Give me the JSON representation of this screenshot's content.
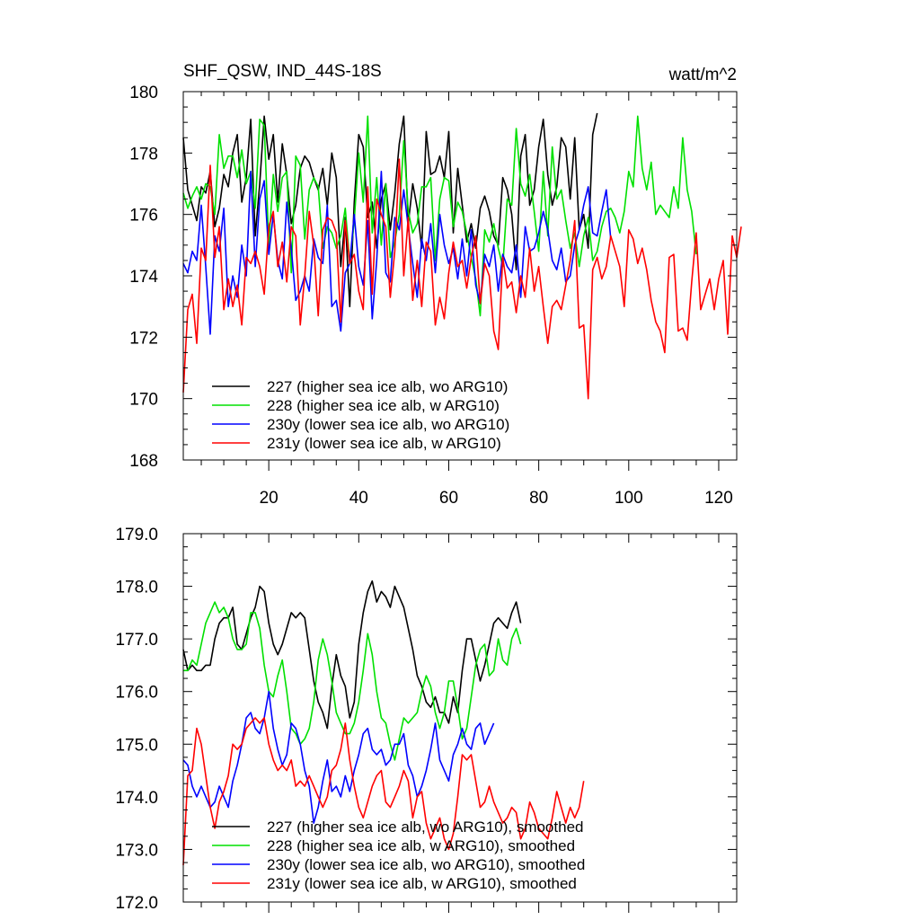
{
  "chart_data": [
    {
      "type": "line",
      "title": "SHF_QSW, IND_44S-18S",
      "units": "watt/m^2",
      "xlabel": "",
      "ylabel": "",
      "xlim": [
        1,
        124
      ],
      "ylim": [
        168,
        180
      ],
      "x_ticks": [
        20,
        40,
        60,
        80,
        100,
        120
      ],
      "y_ticks": [
        168,
        170,
        172,
        174,
        176,
        178,
        180
      ],
      "y_tick_labels": [
        "168",
        "170",
        "172",
        "174",
        "176",
        "178",
        "180"
      ],
      "legend_position": "bottom-left",
      "series": [
        {
          "name": "227 (higher sea ice alb, wo ARG10)",
          "color": "#000000",
          "values": [
            178.5,
            176.8,
            176.3,
            175.8,
            176.9,
            176.7,
            177.4,
            175.6,
            176.2,
            177.3,
            176.9,
            178.0,
            178.6,
            176.4,
            177.2,
            179.1,
            175.3,
            177.0,
            179.2,
            177.8,
            178.6,
            176.4,
            178.3,
            177.3,
            175.7,
            176.3,
            177.5,
            177.9,
            177.7,
            177.2,
            176.8,
            177.5,
            176.3,
            178.0,
            177.2,
            174.3,
            175.9,
            173.0,
            176.4,
            178.6,
            178.2,
            175.9,
            176.4,
            174.9,
            176.5,
            177.0,
            175.5,
            176.7,
            178.3,
            179.2,
            175.7,
            177.0,
            176.2,
            174.9,
            178.7,
            177.3,
            177.4,
            177.9,
            177.2,
            178.7,
            175.4,
            177.5,
            176.3,
            175.1,
            175.7,
            174.9,
            176.2,
            176.6,
            176.1,
            175.3,
            175.0,
            177.2,
            176.8,
            176.0,
            174.2,
            177.9,
            178.6,
            176.3,
            176.8,
            178.2,
            179.1,
            177.3,
            176.3,
            176.9,
            178.5,
            178.2,
            176.5,
            178.5,
            175.5,
            176.0,
            174.9,
            178.6,
            179.3
          ]
        },
        {
          "name": "228 (higher sea ice alb, w ARG10)",
          "color": "#00e000",
          "values": [
            176.7,
            176.2,
            176.6,
            176.9,
            176.5,
            177.0,
            176.9,
            176.0,
            178.6,
            177.5,
            177.9,
            177.9,
            177.2,
            178.1,
            177.0,
            177.4,
            176.2,
            179.1,
            178.9,
            175.0,
            177.3,
            176.1,
            177.2,
            177.4,
            174.1,
            177.9,
            177.6,
            175.2,
            176.8,
            177.2,
            176.9,
            174.9,
            175.6,
            175.4,
            174.9,
            175.3,
            176.2,
            174.4,
            175.8,
            178.0,
            176.4,
            179.2,
            175.4,
            177.2,
            175.0,
            177.0,
            174.6,
            175.1,
            176.0,
            178.4,
            176.1,
            175.4,
            175.7,
            176.9,
            176.9,
            177.2,
            174.5,
            176.5,
            177.2,
            177.1,
            175.6,
            176.4,
            176.1,
            175.4,
            174.6,
            173.9,
            172.7,
            175.5,
            175.1,
            175.7,
            174.9,
            174.3,
            176.5,
            176.3,
            178.8,
            177.0,
            176.6,
            177.3,
            176.1,
            174.8,
            177.4,
            175.3,
            178.2,
            176.5,
            176.8,
            175.8,
            174.9,
            175.4,
            174.3,
            175.3,
            175.9,
            174.5,
            174.8,
            175.6,
            176.1,
            176.2,
            175.9,
            175.4,
            176.1,
            177.4,
            176.9,
            179.2,
            177.5,
            176.8,
            177.7,
            176.0,
            176.3,
            176.1,
            175.9,
            176.9,
            176.2,
            178.5,
            176.8,
            176.1,
            174.7
          ]
        },
        {
          "name": "230y (lower sea ice alb, wo ARG10)",
          "color": "#0000ff",
          "values": [
            174.4,
            174.1,
            174.8,
            174.5,
            176.3,
            174.3,
            172.1,
            175.3,
            174.8,
            176.2,
            173.0,
            174.0,
            173.3,
            175.0,
            174.0,
            177.4,
            174.3,
            176.5,
            177.1,
            174.7,
            176.0,
            174.5,
            173.9,
            176.4,
            174.9,
            173.2,
            173.5,
            174.0,
            173.5,
            175.2,
            174.6,
            174.4,
            176.3,
            173.0,
            173.2,
            172.2,
            174.1,
            174.4,
            176.0,
            174.3,
            173.7,
            175.8,
            172.6,
            174.5,
            177.4,
            174.1,
            173.8,
            175.9,
            175.5,
            176.8,
            175.6,
            174.4,
            173.3,
            175.2,
            174.5,
            175.7,
            174.1,
            176.0,
            175.0,
            174.4,
            174.9,
            173.9,
            175.2,
            174.0,
            175.5,
            173.7,
            173.1,
            174.7,
            174.3,
            175.0,
            173.5,
            174.7,
            174.3,
            174.1,
            175.0,
            173.3,
            175.6,
            174.8,
            174.9,
            175.4,
            176.1,
            175.5,
            174.5,
            174.2,
            174.9,
            173.8,
            174.0,
            175.0,
            175.5,
            176.3,
            176.9,
            175.4,
            175.3,
            176.1,
            176.8,
            175.2
          ]
        },
        {
          "name": "231y (lower sea ice alb, w ARG10)",
          "color": "#ff0000",
          "values": [
            170.2,
            172.9,
            173.4,
            171.8,
            174.9,
            174.5,
            177.6,
            174.6,
            175.6,
            172.9,
            173.9,
            173.0,
            173.7,
            172.4,
            174.6,
            174.4,
            174.8,
            174.3,
            173.4,
            175.6,
            176.1,
            174.3,
            175.1,
            173.8,
            175.6,
            175.3,
            172.4,
            174.0,
            176.1,
            175.0,
            172.7,
            175.5,
            175.9,
            175.8,
            175.4,
            172.5,
            175.8,
            174.4,
            174.7,
            173.5,
            172.9,
            176.9,
            173.4,
            176.5,
            176.0,
            175.6,
            173.3,
            174.8,
            177.8,
            174.0,
            175.9,
            173.2,
            174.5,
            173.0,
            175.1,
            174.8,
            172.4,
            173.3,
            172.6,
            174.1,
            175.1,
            174.3,
            174.5,
            173.6,
            174.6,
            175.3,
            173.1,
            174.4,
            174.0,
            172.2,
            171.6,
            174.6,
            173.6,
            173.8,
            172.8,
            174.0,
            173.3,
            174.9,
            173.5,
            174.3,
            173.0,
            171.8,
            173.0,
            173.2,
            172.9,
            173.7,
            174.5,
            175.8,
            172.3,
            172.4,
            170.0,
            174.2,
            174.6,
            173.9,
            174.3,
            175.3,
            174.8,
            174.3,
            173.0,
            175.5,
            175.2,
            174.4,
            174.9,
            174.2,
            173.2,
            172.5,
            172.2,
            171.5,
            174.6,
            174.7,
            172.2,
            172.3,
            171.9,
            173.8,
            175.4,
            172.9,
            173.4,
            173.9,
            172.9,
            173.9,
            174.5,
            172.1,
            175.3,
            174.6,
            175.6
          ]
        }
      ]
    },
    {
      "type": "line",
      "title": "",
      "xlabel": "",
      "ylabel": "",
      "xlim": [
        1,
        124
      ],
      "ylim": [
        172,
        179
      ],
      "x_ticks": [
        20,
        40,
        60,
        80,
        100,
        120
      ],
      "y_ticks": [
        172,
        173,
        174,
        175,
        176,
        177,
        178,
        179
      ],
      "y_tick_labels": [
        "172.0",
        "173.0",
        "174.0",
        "175.0",
        "176.0",
        "177.0",
        "178.0",
        "179.0"
      ],
      "legend_position": "bottom-left",
      "series": [
        {
          "name": "227 (higher sea ice alb, wo ARG10), smoothed",
          "color": "#000000",
          "values": [
            176.8,
            176.4,
            176.5,
            176.4,
            176.4,
            176.5,
            176.5,
            177.0,
            177.3,
            177.4,
            177.4,
            177.6,
            176.9,
            176.8,
            177.1,
            177.4,
            177.6,
            178.0,
            177.9,
            177.3,
            176.9,
            176.7,
            176.9,
            177.2,
            177.5,
            177.4,
            177.5,
            177.4,
            176.8,
            176.2,
            175.8,
            175.6,
            175.3,
            176.1,
            176.7,
            176.3,
            176.1,
            175.5,
            175.8,
            176.9,
            177.5,
            177.9,
            178.1,
            177.7,
            177.9,
            177.8,
            177.6,
            178.0,
            177.8,
            177.6,
            177.2,
            176.8,
            176.3,
            176.1,
            175.8,
            175.7,
            175.9,
            175.6,
            175.6,
            175.4,
            175.9,
            175.6,
            176.4,
            177.0,
            177.0,
            176.6,
            176.2,
            176.5,
            176.9,
            177.3,
            177.4,
            177.3,
            177.2,
            177.5,
            177.7,
            177.3
          ]
        },
        {
          "name": "228 (higher sea ice alb, w ARG10), smoothed",
          "color": "#00e000",
          "values": [
            176.4,
            176.4,
            176.6,
            176.5,
            176.9,
            177.3,
            177.5,
            177.7,
            177.5,
            177.6,
            177.4,
            177.0,
            176.8,
            176.8,
            176.9,
            177.5,
            177.5,
            177.2,
            176.5,
            176.0,
            175.9,
            176.3,
            176.6,
            176.0,
            175.3,
            175.2,
            175.0,
            175.1,
            175.3,
            175.8,
            176.6,
            177.0,
            176.7,
            176.2,
            175.6,
            175.4,
            175.2,
            175.2,
            175.4,
            175.8,
            176.4,
            177.1,
            176.7,
            176.0,
            175.5,
            175.4,
            175.0,
            174.7,
            175.1,
            175.5,
            175.4,
            175.5,
            175.6,
            176.0,
            176.3,
            176.1,
            175.6,
            175.3,
            175.6,
            176.2,
            176.2,
            175.7,
            175.1,
            175.3,
            175.9,
            176.5,
            176.8,
            176.9,
            176.3,
            176.4,
            177.0,
            176.6,
            176.5,
            177.0,
            177.2,
            176.9
          ]
        },
        {
          "name": "230y (lower sea ice alb, wo ARG10), smoothed",
          "color": "#0000ff",
          "values": [
            174.7,
            174.6,
            174.2,
            174.0,
            174.2,
            174.0,
            173.8,
            173.9,
            174.2,
            174.0,
            173.8,
            174.3,
            174.6,
            175.0,
            175.5,
            175.6,
            175.3,
            175.2,
            175.5,
            176.0,
            175.3,
            174.9,
            174.6,
            174.8,
            175.4,
            175.3,
            175.0,
            174.5,
            174.2,
            173.5,
            173.8,
            174.3,
            174.7,
            174.1,
            174.2,
            174.0,
            174.4,
            174.1,
            174.5,
            174.8,
            175.2,
            175.3,
            174.9,
            174.8,
            174.9,
            174.6,
            174.7,
            175.0,
            175.0,
            175.2,
            174.6,
            174.4,
            174.0,
            174.2,
            174.5,
            174.9,
            175.4,
            174.7,
            174.5,
            174.3,
            174.8,
            175.0,
            175.3,
            175.0,
            174.9,
            175.3,
            175.4,
            175.0,
            175.2,
            175.4
          ]
        },
        {
          "name": "231y (lower sea ice alb, w ARG10), smoothed",
          "color": "#ff0000",
          "values": [
            172.7,
            174.4,
            174.5,
            175.3,
            175.0,
            174.4,
            173.8,
            173.4,
            173.9,
            174.1,
            174.4,
            175.0,
            174.9,
            175.0,
            175.3,
            175.4,
            175.5,
            175.4,
            175.5,
            175.0,
            174.7,
            174.5,
            174.6,
            174.5,
            174.7,
            174.2,
            174.3,
            174.2,
            174.4,
            174.2,
            174.0,
            173.8,
            174.0,
            174.5,
            174.6,
            174.9,
            175.4,
            174.7,
            174.2,
            173.8,
            173.6,
            173.9,
            174.2,
            174.4,
            174.5,
            173.9,
            173.8,
            174.0,
            174.2,
            174.5,
            174.3,
            173.6,
            174.0,
            174.1,
            173.5,
            173.2,
            173.4,
            173.6,
            173.2,
            173.0,
            173.3,
            174.0,
            174.8,
            174.7,
            174.8,
            174.3,
            173.8,
            173.9,
            174.2,
            173.9,
            173.7,
            173.5,
            173.6,
            173.8,
            173.7,
            173.2,
            173.4,
            173.9,
            173.7,
            173.4,
            173.3,
            173.2,
            173.6,
            174.1,
            173.8,
            173.5,
            173.8,
            173.6,
            173.8,
            174.3
          ]
        }
      ]
    }
  ]
}
